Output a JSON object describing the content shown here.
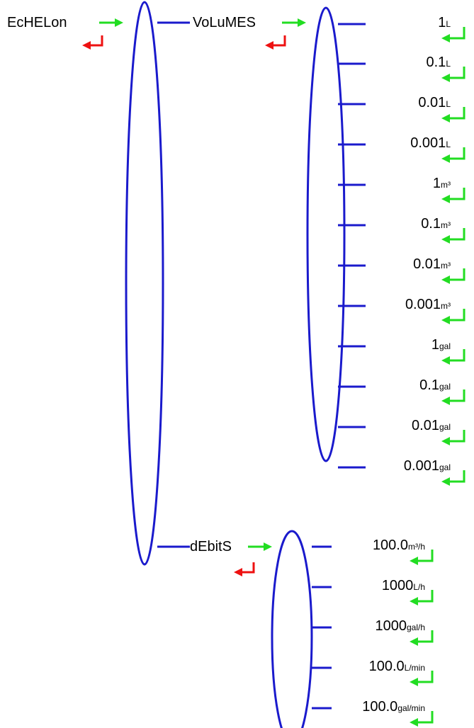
{
  "root": {
    "label": "EcHELon"
  },
  "volumes": {
    "label": "VoLuMES",
    "items": [
      {
        "value": "1",
        "unit": "L"
      },
      {
        "value": "0.1",
        "unit": "L"
      },
      {
        "value": "0.01",
        "unit": "L"
      },
      {
        "value": "0.001",
        "unit": "L"
      },
      {
        "value": "1",
        "unit": "m³"
      },
      {
        "value": "0.1",
        "unit": "m³"
      },
      {
        "value": "0.01",
        "unit": "m³"
      },
      {
        "value": "0.001",
        "unit": "m³"
      },
      {
        "value": "1",
        "unit": "gal"
      },
      {
        "value": "0.1",
        "unit": "gal"
      },
      {
        "value": "0.01",
        "unit": "gal"
      },
      {
        "value": "0.001",
        "unit": "gal"
      }
    ]
  },
  "debits": {
    "label": "dEbitS",
    "items": [
      {
        "value": "100.0",
        "unit": "m³/h"
      },
      {
        "value": "1000",
        "unit": "L/h"
      },
      {
        "value": "1000",
        "unit": "gal/h"
      },
      {
        "value": "100.0",
        "unit": "L/min"
      },
      {
        "value": "100.0",
        "unit": "gal/min"
      }
    ]
  },
  "colors": {
    "line": "#1a1acc",
    "enter_arrow": "#22dd22",
    "back_arrow": "#ee1111",
    "text": "#000000"
  },
  "icons": {
    "enter": "green-right-arrow-icon",
    "back": "red-return-arrow-icon",
    "confirm": "green-enter-arrow-icon"
  }
}
